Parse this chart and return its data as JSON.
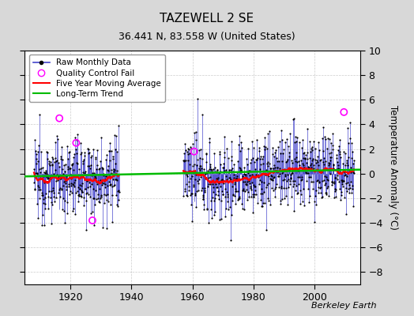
{
  "title": "TAZEWELL 2 SE",
  "subtitle": "36.441 N, 83.558 W (United States)",
  "ylabel": "Temperature Anomaly (°C)",
  "credit": "Berkeley Earth",
  "ylim": [
    -9,
    10
  ],
  "yticks": [
    -8,
    -6,
    -4,
    -2,
    0,
    2,
    4,
    6,
    8,
    10
  ],
  "xlim": [
    1905,
    2015
  ],
  "xticks": [
    1920,
    1940,
    1960,
    1980,
    2000
  ],
  "fig_bg_color": "#d8d8d8",
  "plot_bg_color": "#ffffff",
  "line_color": "#4444cc",
  "dot_color": "#000000",
  "ma_color": "#ff0000",
  "trend_color": "#00bb00",
  "qc_color": "#ff00ff",
  "seed": 12345,
  "early_start": 1908,
  "early_end": 1936,
  "late_start": 1957,
  "late_end": 2013,
  "noise_std": 1.6,
  "early_bias": -0.2,
  "trend_slope": 0.005,
  "trend_intercept": 0.05,
  "ref_year": 1960
}
